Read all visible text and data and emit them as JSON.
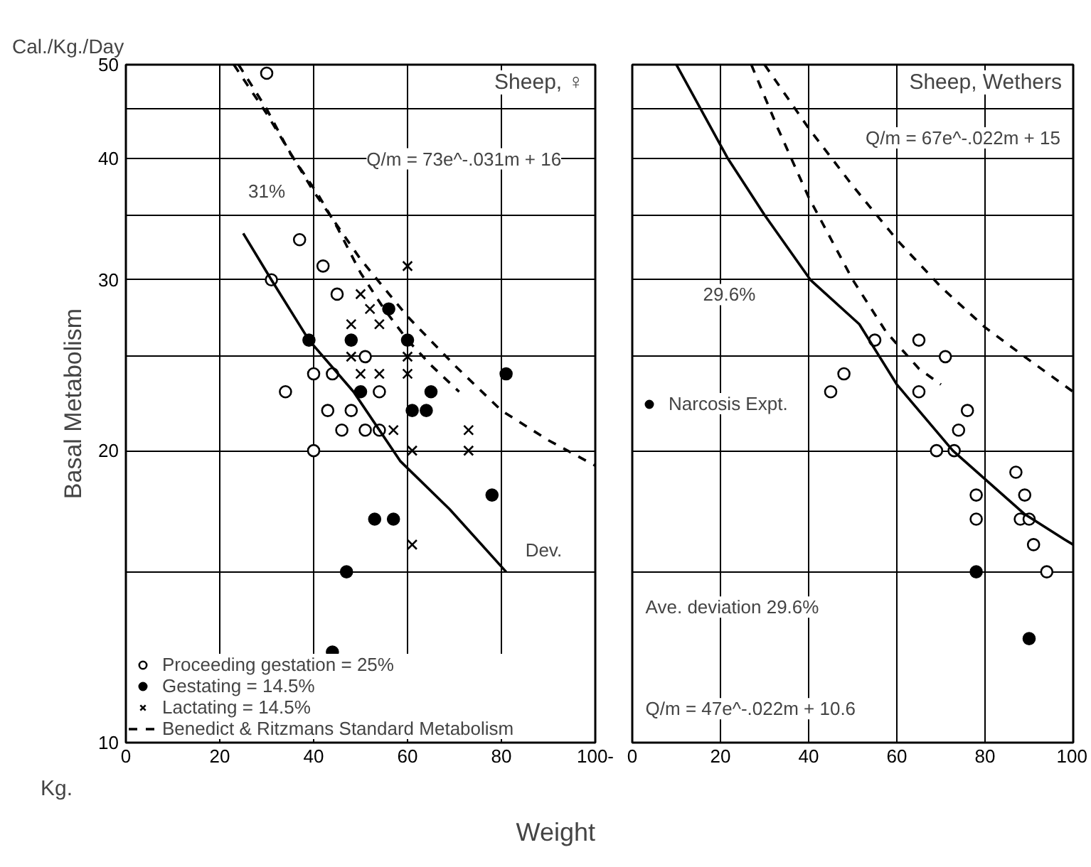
{
  "chart_data": [
    {
      "type": "scatter",
      "title": "Sheep, ♀",
      "subtitle": "Cal./Kg./Day",
      "ylabel": "Basal Metabolism",
      "xlabel": "Weight",
      "xlim": [
        0,
        100
      ],
      "xticks": [
        0,
        20,
        40,
        60,
        80,
        {
          "value": 100,
          "label": "100-"
        }
      ],
      "ylim": [
        10,
        50
      ],
      "yticks": [
        10,
        {
          "value": 15,
          "label": null
        },
        20,
        {
          "value": 25,
          "label": null
        },
        30,
        {
          "value": 35,
          "label": null
        },
        40,
        {
          "value": 45,
          "label": null
        },
        50
      ],
      "log": true,
      "grid": true,
      "legend": "bottom left",
      "series": [
        {
          "name": "Proceeding gestation = 25%",
          "marker": "circle",
          "color": "#ffffff",
          "x": [
            30,
            37,
            42,
            31,
            45,
            51,
            40,
            44,
            34,
            54,
            43,
            48,
            46,
            51,
            54,
            40
          ],
          "values": [
            49,
            33,
            31,
            30,
            29,
            25,
            24,
            24,
            23,
            23,
            22,
            22,
            21,
            21,
            21,
            20
          ]
        },
        {
          "name": "Gestating = 14.5%",
          "marker": "circle",
          "color": "#000000",
          "x": [
            39,
            56,
            48,
            60,
            81,
            50,
            65,
            61,
            64,
            78,
            53,
            57,
            47,
            44
          ],
          "values": [
            26,
            28,
            26,
            26,
            24,
            23,
            23,
            22,
            22,
            18,
            17,
            17,
            15,
            12.4
          ]
        },
        {
          "name": "Lactating = 14.5%",
          "marker": "cross",
          "color": "#000000",
          "x": [
            60,
            50,
            52,
            54,
            48,
            48,
            60,
            60,
            50,
            54,
            57,
            73,
            61,
            73,
            61
          ],
          "values": [
            31,
            29,
            28,
            27,
            27,
            25,
            25,
            24,
            24,
            24,
            21,
            21,
            20,
            20,
            16
          ]
        },
        {
          "name": "Benedict & Ritzmans Standard Metabolism",
          "type": "line",
          "line_style": "dashed",
          "color": "#000000",
          "x": [
            24,
            30,
            35,
            41,
            45,
            50,
            55,
            60,
            65,
            71
          ],
          "values": [
            50,
            45,
            40.5,
            36.7,
            34,
            30.5,
            28,
            26,
            24.5,
            23
          ]
        },
        {
          "type": "line",
          "line_style": "dashed",
          "color": "#000000",
          "x": [
            23,
            30,
            40,
            50,
            60,
            70,
            80,
            90,
            100
          ],
          "values": [
            50,
            44.5,
            37,
            31.5,
            27.5,
            24.5,
            22,
            20.5,
            19.3
          ]
        },
        {
          "type": "line",
          "line_style": "solid",
          "color": "#000000",
          "x": [
            25,
            31,
            39,
            48.5,
            58.5,
            69,
            81
          ],
          "values": [
            33.5,
            30,
            26,
            23,
            19.5,
            17.4,
            15
          ]
        }
      ],
      "annotations": [
        "Q/m = 73e^-.031m + 16",
        "31%",
        "Dev.",
        "Kg."
      ]
    },
    {
      "type": "scatter",
      "title": "Sheep, Wethers",
      "xlim": [
        0,
        100
      ],
      "xticks": [
        0,
        20,
        40,
        60,
        80,
        100
      ],
      "ylim": [
        10,
        50
      ],
      "yticks": [
        10,
        {
          "value": 15,
          "label": null
        },
        20,
        {
          "value": 25,
          "label": null
        },
        30,
        {
          "value": 35,
          "label": null
        },
        40,
        {
          "value": 45,
          "label": null
        },
        50
      ],
      "log": true,
      "grid": true,
      "legend": "left",
      "tick_labels": "x",
      "series": [
        {
          "marker": "circle",
          "color": "#ffffff",
          "x": [
            55,
            65,
            71,
            48,
            45,
            65,
            76,
            74,
            69,
            73,
            87,
            78,
            89,
            78,
            88,
            90,
            91,
            94
          ],
          "values": [
            26,
            26,
            25,
            24,
            23,
            23,
            22,
            21,
            20,
            20,
            19,
            18,
            18,
            17,
            17,
            17,
            16,
            15
          ]
        },
        {
          "name": "Narcosis Expt.",
          "marker": "circle",
          "color": "#000000",
          "x": [
            78,
            90
          ],
          "values": [
            15,
            12.8
          ]
        },
        {
          "type": "line",
          "line_style": "dashed",
          "color": "#000000",
          "x": [
            27,
            33,
            40,
            50,
            57.6,
            65,
            70
          ],
          "values": [
            50,
            43,
            36.5,
            30,
            26.5,
            24.3,
            23.4
          ]
        },
        {
          "type": "line",
          "line_style": "dashed",
          "color": "#000000",
          "x": [
            30,
            40,
            50,
            60,
            70,
            80,
            90,
            100
          ],
          "values": [
            50,
            43,
            37.5,
            33,
            29.5,
            26.8,
            24.8,
            23
          ]
        },
        {
          "type": "line",
          "line_style": "solid",
          "color": "#000000",
          "x": [
            10,
            21.7,
            30,
            40.4,
            51.5,
            60,
            72.7,
            89,
            98,
            100
          ],
          "values": [
            50,
            40,
            35,
            30,
            27,
            23.4,
            20,
            17.2,
            16.2,
            16
          ]
        }
      ],
      "annotations": [
        "Q/m = 67e^-.022m + 15",
        "29.6%",
        "Ave. deviation 29.6%",
        "Q/m = 47e^-.022m + 10.6"
      ]
    }
  ]
}
